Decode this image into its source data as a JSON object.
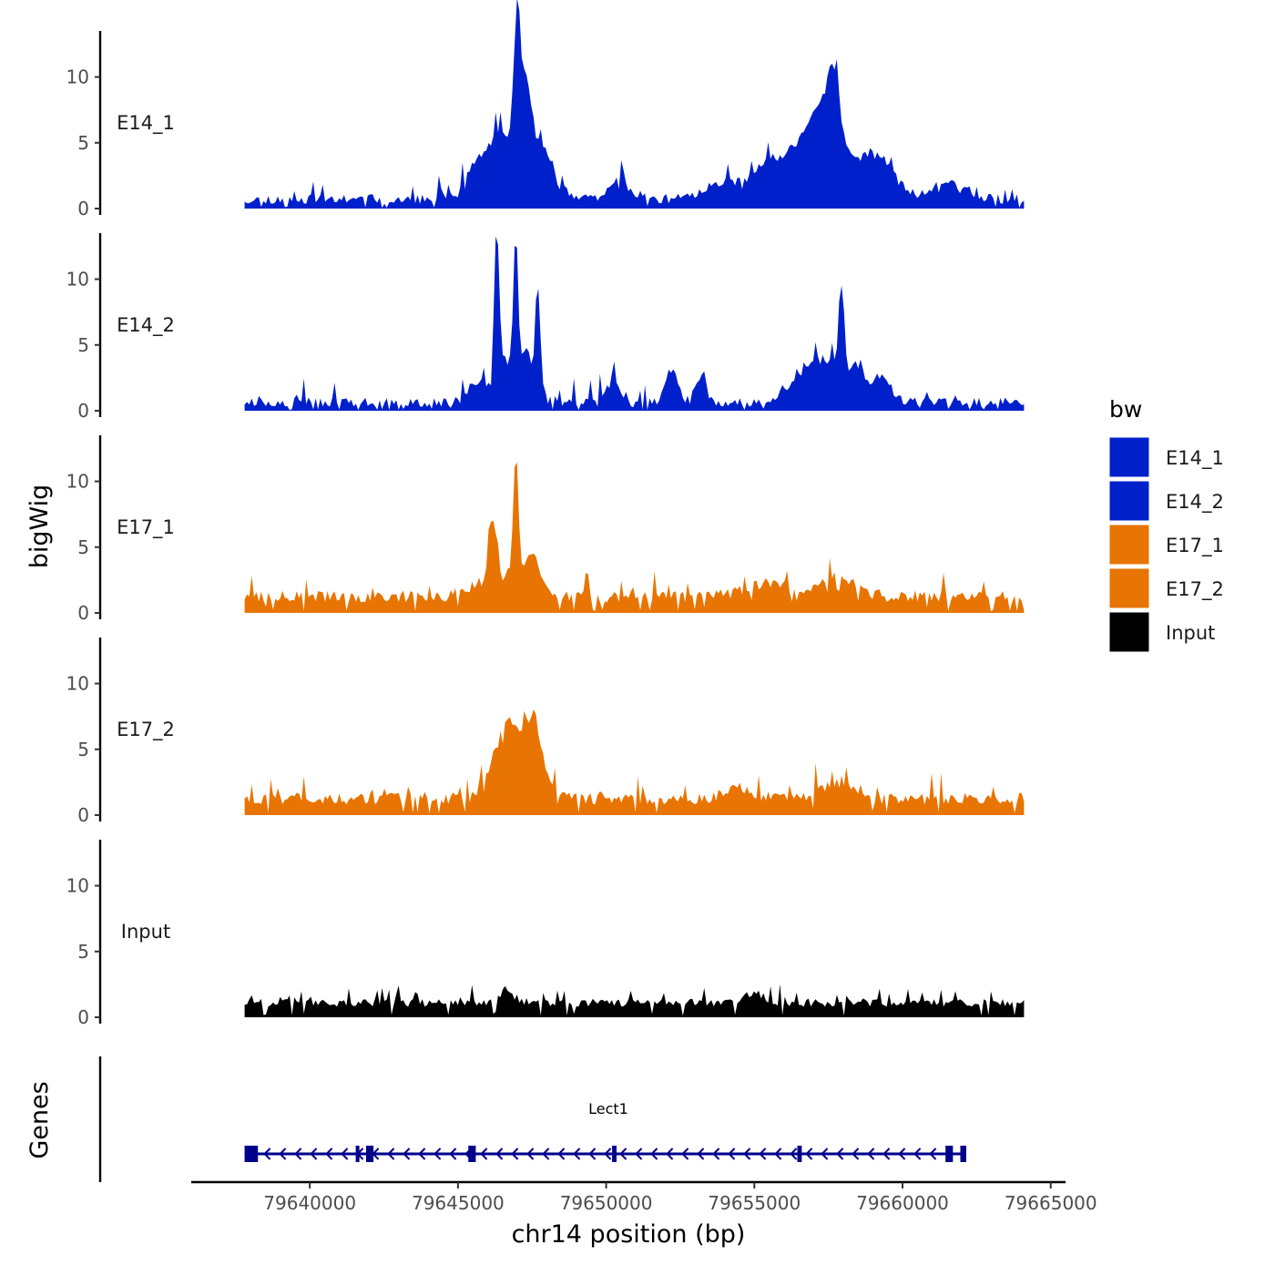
{
  "chart_data": {
    "type": "area",
    "title": "",
    "xlabel": "chr14 position (bp)",
    "ylabel": "bigWig",
    "genes_label": "Genes",
    "xlim": [
      79636000,
      79665500
    ],
    "ylim": [
      0,
      13.5
    ],
    "x_ticks": [
      79640000,
      79645000,
      79650000,
      79655000,
      79660000,
      79665000
    ],
    "x_tick_labels": [
      "79640000",
      "79645000",
      "79650000",
      "79655000",
      "79660000",
      "79665000"
    ],
    "y_ticks": [
      0,
      5,
      10
    ],
    "y_tick_labels": [
      "0",
      "5",
      "10"
    ],
    "data_range": [
      79637800,
      79664100
    ],
    "legend": {
      "title": "bw",
      "entries": [
        {
          "label": "E14_1",
          "color": "#0020CC"
        },
        {
          "label": "E14_2",
          "color": "#0020CC"
        },
        {
          "label": "E17_1",
          "color": "#E87503"
        },
        {
          "label": "E17_2",
          "color": "#E87503"
        },
        {
          "label": "Input",
          "color": "#000000"
        }
      ]
    },
    "series": [
      {
        "name": "E14_1",
        "color": "#0020CC",
        "baseline": 0.35,
        "noise": 0.75,
        "seed": 11,
        "peaks": [
          [
            79645500,
            1.5,
            300
          ],
          [
            79646200,
            3.5,
            450
          ],
          [
            79646600,
            2.5,
            300
          ],
          [
            79647000,
            11.5,
            120
          ],
          [
            79647300,
            5.5,
            150
          ],
          [
            79647600,
            4.5,
            350
          ],
          [
            79648200,
            1.5,
            300
          ],
          [
            79650500,
            1.0,
            400
          ],
          [
            79653800,
            1.2,
            500
          ],
          [
            79655500,
            2.5,
            700
          ],
          [
            79656700,
            3.0,
            600
          ],
          [
            79657300,
            5.0,
            400
          ],
          [
            79657700,
            5.5,
            200
          ],
          [
            79658300,
            2.2,
            400
          ],
          [
            79659200,
            3.0,
            600
          ],
          [
            79661500,
            1.2,
            500
          ]
        ]
      },
      {
        "name": "E14_2",
        "color": "#0020CC",
        "baseline": 0.3,
        "noise": 0.7,
        "seed": 23,
        "peaks": [
          [
            79645700,
            1.5,
            400
          ],
          [
            79646300,
            11.5,
            80
          ],
          [
            79646600,
            3.5,
            200
          ],
          [
            79646950,
            11.5,
            80
          ],
          [
            79647300,
            4.0,
            200
          ],
          [
            79647700,
            8.0,
            90
          ],
          [
            79650300,
            1.5,
            300
          ],
          [
            79652200,
            2.5,
            200
          ],
          [
            79653200,
            2.0,
            200
          ],
          [
            79656700,
            2.5,
            500
          ],
          [
            79657500,
            2.5,
            400
          ],
          [
            79657950,
            7.5,
            100
          ],
          [
            79658500,
            3.0,
            250
          ],
          [
            79659300,
            2.0,
            300
          ]
        ]
      },
      {
        "name": "E17_1",
        "color": "#E87503",
        "baseline": 0.8,
        "noise": 0.9,
        "seed": 37,
        "peaks": [
          [
            79645800,
            1.0,
            500
          ],
          [
            79646200,
            4.0,
            150
          ],
          [
            79646600,
            1.5,
            300
          ],
          [
            79646950,
            9.5,
            90
          ],
          [
            79647500,
            3.0,
            300
          ],
          [
            79657800,
            1.5,
            600
          ],
          [
            79655500,
            1.0,
            800
          ]
        ]
      },
      {
        "name": "E17_2",
        "color": "#E87503",
        "baseline": 0.8,
        "noise": 0.9,
        "seed": 53,
        "peaks": [
          [
            79646100,
            2.0,
            300
          ],
          [
            79646700,
            5.5,
            300
          ],
          [
            79647300,
            3.5,
            250
          ],
          [
            79647600,
            4.0,
            200
          ],
          [
            79648000,
            1.2,
            300
          ],
          [
            79654500,
            0.8,
            500
          ],
          [
            79657800,
            1.2,
            500
          ]
        ]
      },
      {
        "name": "Input",
        "color": "#000000",
        "baseline": 0.8,
        "noise": 0.6,
        "seed": 71,
        "peaks": [
          [
            79646600,
            1.0,
            200
          ],
          [
            79655000,
            0.8,
            300
          ]
        ]
      }
    ],
    "genes": [
      {
        "name": "Lect1",
        "strand": "-",
        "start": 79637800,
        "end": 79662100,
        "color": "#00008B",
        "exons": [
          [
            79637800,
            79638250
          ],
          [
            79641550,
            79641650
          ],
          [
            79641900,
            79642150
          ],
          [
            79645350,
            79645600
          ],
          [
            79650200,
            79650350
          ],
          [
            79656450,
            79656600
          ],
          [
            79661450,
            79661700
          ],
          [
            79661950,
            79662150
          ]
        ]
      }
    ]
  }
}
